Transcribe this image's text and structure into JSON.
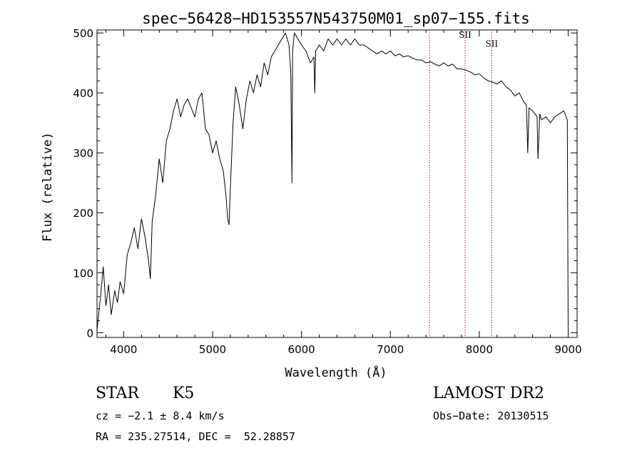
{
  "chart_data": {
    "type": "line",
    "title": "spec−56428−HD153557N543750M01_sp07−155.fits",
    "xlabel": "Wavelength (Å)",
    "ylabel": "Flux (relative)",
    "xlim": [
      3700,
      9100
    ],
    "ylim": [
      -8,
      505
    ],
    "xticks": [
      4000,
      5000,
      6000,
      7000,
      8000,
      9000
    ],
    "yticks": [
      0,
      100,
      200,
      300,
      400,
      500
    ],
    "grid": false,
    "series": [
      {
        "color": "#000000",
        "x": [
          3700,
          3740,
          3770,
          3800,
          3830,
          3860,
          3900,
          3930,
          3960,
          4000,
          4040,
          4080,
          4120,
          4160,
          4200,
          4240,
          4280,
          4300,
          4320,
          4360,
          4400,
          4440,
          4480,
          4520,
          4560,
          4600,
          4640,
          4680,
          4720,
          4760,
          4800,
          4840,
          4880,
          4920,
          4960,
          5000,
          5040,
          5080,
          5120,
          5150,
          5170,
          5185,
          5200,
          5230,
          5260,
          5300,
          5340,
          5380,
          5420,
          5460,
          5500,
          5540,
          5580,
          5620,
          5660,
          5700,
          5740,
          5780,
          5820,
          5860,
          5880,
          5893,
          5900,
          5920,
          5960,
          6000,
          6050,
          6100,
          6140,
          6150,
          6160,
          6200,
          6250,
          6300,
          6350,
          6400,
          6450,
          6500,
          6550,
          6600,
          6650,
          6700,
          6750,
          6800,
          6850,
          6900,
          6950,
          7000,
          7050,
          7100,
          7150,
          7200,
          7250,
          7300,
          7350,
          7400,
          7450,
          7500,
          7550,
          7600,
          7650,
          7700,
          7750,
          7800,
          7850,
          7900,
          7950,
          8000,
          8050,
          8100,
          8150,
          8200,
          8250,
          8300,
          8350,
          8400,
          8450,
          8500,
          8530,
          8545,
          8560,
          8600,
          8650,
          8660,
          8680,
          8700,
          8750,
          8800,
          8850,
          8900,
          8950,
          8990,
          9000
        ],
        "y": [
          5,
          60,
          110,
          45,
          80,
          30,
          70,
          50,
          85,
          65,
          130,
          150,
          175,
          140,
          190,
          160,
          120,
          90,
          185,
          230,
          290,
          250,
          320,
          340,
          370,
          390,
          360,
          380,
          390,
          375,
          360,
          390,
          400,
          340,
          330,
          300,
          320,
          290,
          270,
          230,
          190,
          180,
          240,
          350,
          410,
          380,
          340,
          390,
          420,
          400,
          430,
          410,
          450,
          430,
          460,
          470,
          480,
          490,
          500,
          480,
          430,
          250,
          470,
          500,
          490,
          480,
          470,
          450,
          460,
          400,
          470,
          480,
          470,
          490,
          480,
          490,
          480,
          490,
          480,
          490,
          480,
          480,
          475,
          470,
          465,
          470,
          465,
          470,
          462,
          465,
          460,
          462,
          458,
          455,
          455,
          450,
          452,
          448,
          445,
          450,
          445,
          448,
          440,
          440,
          438,
          435,
          430,
          432,
          425,
          420,
          418,
          415,
          420,
          410,
          405,
          395,
          400,
          385,
          380,
          300,
          375,
          370,
          360,
          290,
          365,
          355,
          360,
          350,
          360,
          365,
          370,
          355,
          0
        ]
      }
    ],
    "annotations": [
      {
        "text": "SII",
        "x": 7840,
        "y": 492
      },
      {
        "text": "SII",
        "x": 8140,
        "y": 477
      }
    ],
    "reference_lines": [
      7440,
      7840,
      8140
    ],
    "reference_color": "#9b1c1c"
  },
  "info": {
    "object_type": "STAR",
    "spectral_class": "K5",
    "cz": "cz = −2.1 ± 8.4 km/s",
    "coords": "RA = 235.27514, DEC =  52.28857",
    "survey": "LAMOST DR2",
    "obs_date": "Obs−Date: 20130515"
  }
}
